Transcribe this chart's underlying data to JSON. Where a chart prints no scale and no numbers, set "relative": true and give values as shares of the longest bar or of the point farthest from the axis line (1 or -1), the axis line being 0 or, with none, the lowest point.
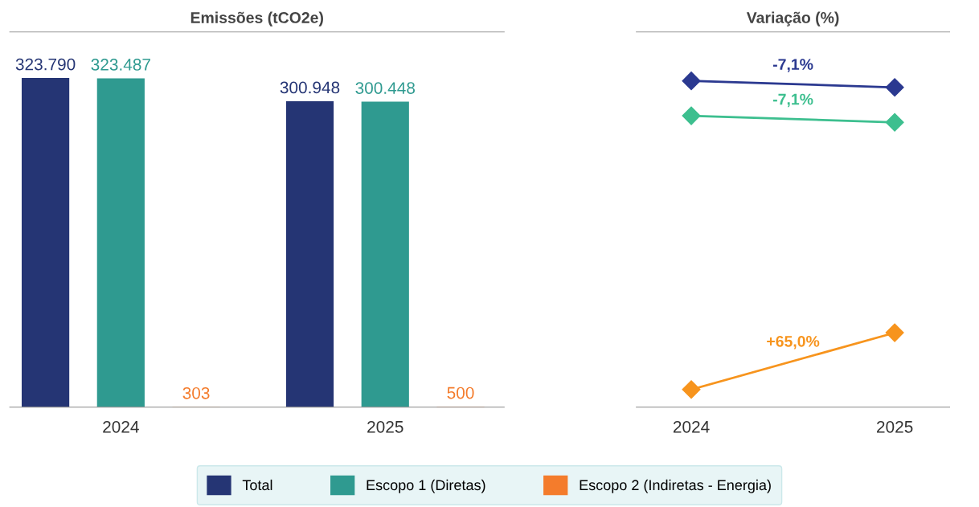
{
  "chart_data": [
    {
      "type": "bar",
      "title": "Emissões (tCO2e)",
      "categories": [
        "2024",
        "2025"
      ],
      "legend": "bottom",
      "grid": false,
      "series": [
        {
          "name": "Total",
          "color": "#253574",
          "values": [
            323790,
            300948
          ],
          "value_labels": [
            "323.790",
            "300.948"
          ]
        },
        {
          "name": "Escopo 1 (Diretas)",
          "color": "#2f9a90",
          "values": [
            323487,
            300448
          ],
          "value_labels": [
            "323.487",
            "300.448"
          ]
        },
        {
          "name": "Escopo 2 (Indiretas - Energia)",
          "color": "#f47c2c",
          "values": [
            303,
            500
          ],
          "value_labels": [
            "303",
            "500"
          ]
        }
      ]
    },
    {
      "type": "line",
      "title": "Variação (%)",
      "categories": [
        "2024",
        "2025"
      ],
      "relative": true,
      "marker": "diamond",
      "grid": false,
      "series": [
        {
          "color": "#2b3990",
          "values": [
            1,
            0.98
          ]
        },
        {
          "color": "#3dbf8f",
          "values": [
            0.893,
            0.873
          ]
        },
        {
          "color": "#f7941d",
          "values": [
            0.054,
            0.228
          ]
        }
      ],
      "annotations": [
        "-7,1%",
        "-7,1%",
        "+65,0%"
      ]
    }
  ]
}
